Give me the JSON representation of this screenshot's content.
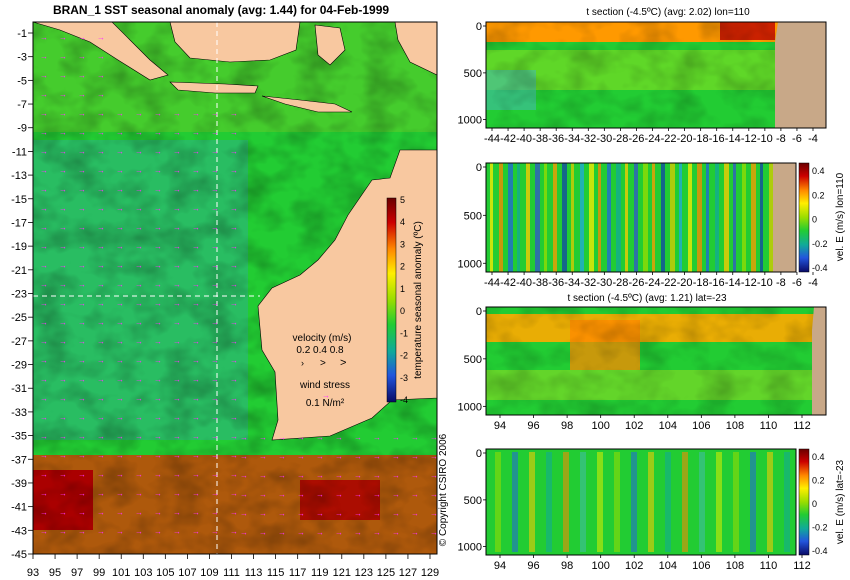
{
  "main_map": {
    "title": "BRAN_1 SST seasonal anomaly (avg: 1.44) for 04-Feb-1999",
    "xticks": [
      "93",
      "95",
      "97",
      "99",
      "101",
      "103",
      "105",
      "107",
      "109",
      "111",
      "113",
      "115",
      "117",
      "119",
      "121",
      "123",
      "125",
      "127",
      "129"
    ],
    "yticks": [
      "-1",
      "-3",
      "-5",
      "-7",
      "-9",
      "-11",
      "-13",
      "-15",
      "-17",
      "-19",
      "-21",
      "-23",
      "-25",
      "-27",
      "-29",
      "-31",
      "-33",
      "-35",
      "-37",
      "-39",
      "-41",
      "-43",
      "-45"
    ],
    "colorbar_label": "temperature seasonal anomaly (ºC)",
    "colorbar_ticks": [
      "5",
      "4",
      "3",
      "2",
      "1",
      "0",
      "-1",
      "-2",
      "-3",
      "-4"
    ],
    "velocity_label": "velocity (m/s)",
    "velocity_scale": "0.2 0.4 0.8",
    "wind_label": "wind stress",
    "wind_scale": "0.1 N/m²",
    "copyright": "© Copyright CSIRO 2006",
    "colors": {
      "land": "#f8c8a0",
      "arrow": "#ff33ff",
      "ocean_base": "#22cc33"
    }
  },
  "chart_data": [
    {
      "type": "heatmap",
      "title": "BRAN_1 SST seasonal anomaly (avg: 1.44) for 04-Feb-1999",
      "xlabel": "",
      "ylabel": "",
      "xlim": [
        93,
        130
      ],
      "ylim": [
        -45,
        0
      ],
      "colorbar": {
        "label": "temperature seasonal anomaly (ºC)",
        "range": [
          -4,
          5
        ]
      },
      "crosshair": {
        "lon": 110,
        "lat": -23
      }
    },
    {
      "type": "heatmap",
      "title": "t section (-4.5ºC) (avg: 2.02) lon=110",
      "x_ticks": [
        "-44",
        "-42",
        "-40",
        "-38",
        "-36",
        "-34",
        "-32",
        "-30",
        "-28",
        "-26",
        "-24",
        "-22",
        "-20",
        "-18",
        "-16",
        "-14",
        "-12",
        "-10",
        "-8",
        "-6",
        "-4"
      ],
      "y_ticks": [
        "0",
        "500",
        "1000"
      ],
      "xlim": [
        -45,
        -2
      ],
      "ylim": [
        1050,
        0
      ]
    },
    {
      "type": "heatmap",
      "title": "",
      "x_ticks": [
        "-44",
        "-42",
        "-40",
        "-38",
        "-36",
        "-34",
        "-32",
        "-30",
        "-28",
        "-26",
        "-24",
        "-22",
        "-20",
        "-18",
        "-16",
        "-14",
        "-12",
        "-10",
        "-8",
        "-6",
        "-4"
      ],
      "y_ticks": [
        "0",
        "500",
        "1000"
      ],
      "xlim": [
        -45,
        -2
      ],
      "ylim": [
        1050,
        0
      ],
      "colorbar": {
        "label": "vel. E (m/s) lon=110",
        "ticks": [
          "0.4",
          "0.2",
          "0",
          "-0.2",
          "-0.4"
        ]
      }
    },
    {
      "type": "heatmap",
      "title": "t section (-4.5ºC) (avg: 1.21) lat=-23",
      "x_ticks": [
        "94",
        "96",
        "98",
        "100",
        "102",
        "104",
        "106",
        "108",
        "110",
        "112"
      ],
      "y_ticks": [
        "0",
        "500",
        "1000"
      ],
      "xlim": [
        93,
        114
      ],
      "ylim": [
        1050,
        0
      ]
    },
    {
      "type": "heatmap",
      "title": "",
      "x_ticks": [
        "94",
        "96",
        "98",
        "100",
        "102",
        "104",
        "106",
        "108",
        "110",
        "112"
      ],
      "y_ticks": [
        "0",
        "500",
        "1000"
      ],
      "xlim": [
        93,
        114
      ],
      "ylim": [
        1050,
        0
      ],
      "colorbar": {
        "label": "vel. E (m/s) lat=-23",
        "ticks": [
          "0.4",
          "0.2",
          "0",
          "-0.2",
          "-0.4"
        ]
      }
    }
  ]
}
